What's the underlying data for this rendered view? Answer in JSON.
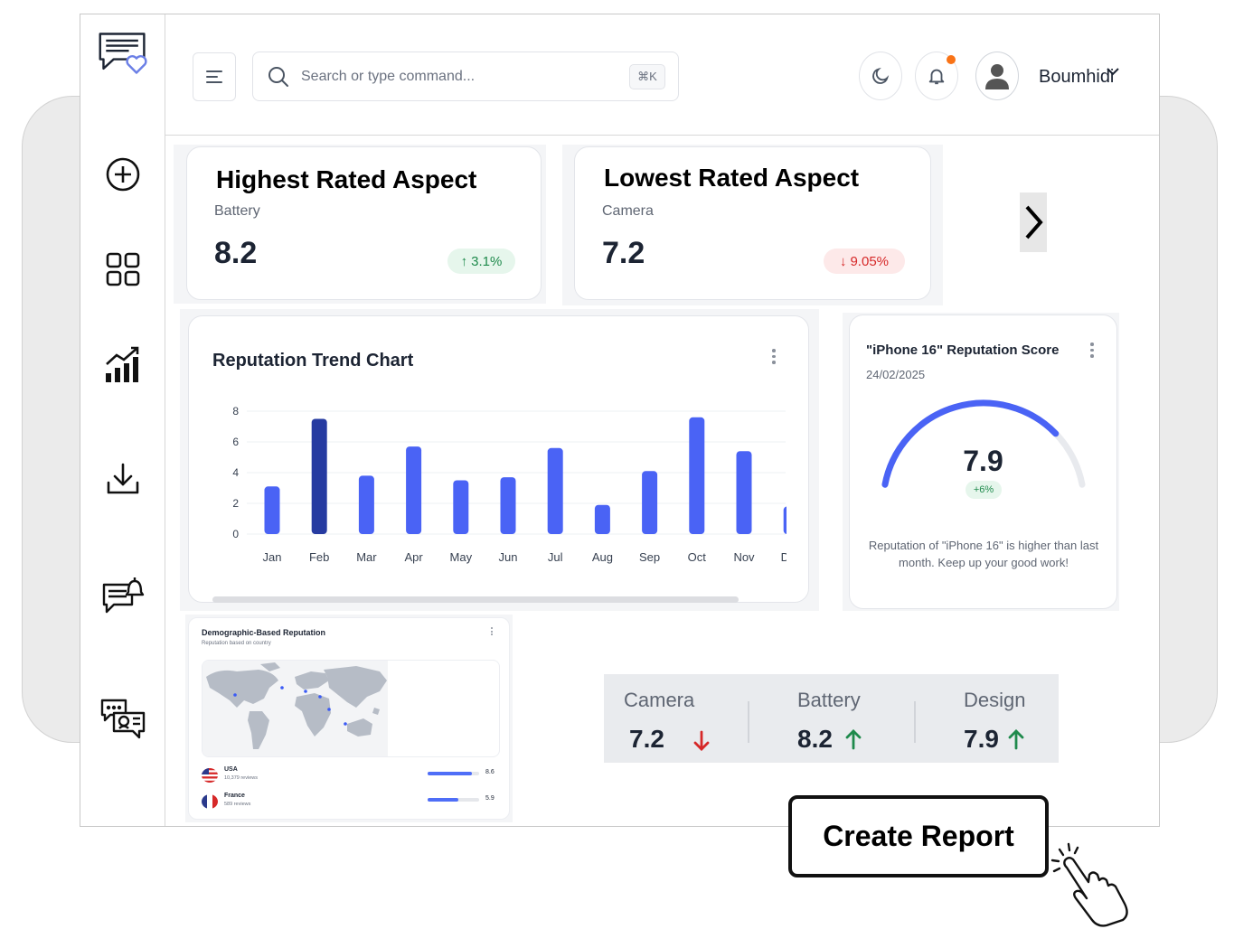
{
  "topbar": {
    "search_placeholder": "Search or type command...",
    "search_shortcut": "⌘K",
    "username": "Boumhidi"
  },
  "sidebar": {
    "items": [
      {
        "icon": "feedback-heart-icon"
      },
      {
        "icon": "plus-circle-icon"
      },
      {
        "icon": "grid-icon"
      },
      {
        "icon": "analytics-icon"
      },
      {
        "icon": "download-icon"
      },
      {
        "icon": "message-alert-icon"
      },
      {
        "icon": "support-chat-icon"
      }
    ]
  },
  "highest": {
    "title": "Highest Rated Aspect",
    "aspect": "Battery",
    "value": "8.2",
    "change": "3.1%"
  },
  "lowest": {
    "title": "Lowest Rated Aspect",
    "aspect": "Camera",
    "value": "7.2",
    "change": "9.05%"
  },
  "trend": {
    "title": "Reputation Trend Chart"
  },
  "chart_data": {
    "type": "bar",
    "title": "Reputation Trend Chart",
    "categories": [
      "Jan",
      "Feb",
      "Mar",
      "Apr",
      "May",
      "Jun",
      "Jul",
      "Aug",
      "Sep",
      "Oct",
      "Nov",
      "Dec"
    ],
    "values": [
      3.1,
      7.5,
      3.8,
      5.7,
      3.5,
      3.7,
      5.6,
      1.9,
      4.1,
      7.6,
      5.4,
      1.8
    ],
    "highlight_index": 1,
    "ylim": [
      0,
      8
    ],
    "yticks": [
      "8",
      "6",
      "4",
      "2",
      "0"
    ],
    "colors": {
      "bar": "#4a63f5",
      "highlight": "#263ba1"
    },
    "grid": true
  },
  "score": {
    "title": "\"iPhone 16\" Reputation Score",
    "date": "24/02/2025",
    "value": "7.9",
    "change": "+6%",
    "fill_fraction": 0.79,
    "message": "Reputation of \"iPhone 16\" is higher than last month. Keep up your good work!"
  },
  "demographic": {
    "title": "Demographic-Based Reputation",
    "subtitle": "Reputation based on country",
    "countries": [
      {
        "name": "USA",
        "reviews": "10,379 reviews",
        "score": "8.6",
        "fill": 0.86
      },
      {
        "name": "France",
        "reviews": "589 reviews",
        "score": "5.9",
        "fill": 0.59
      }
    ]
  },
  "summary": {
    "items": [
      {
        "label": "Camera",
        "value": "7.2",
        "trend": "down"
      },
      {
        "label": "Battery",
        "value": "8.2",
        "trend": "up"
      },
      {
        "label": "Design",
        "value": "7.9",
        "trend": "up"
      }
    ]
  },
  "cta": {
    "label": "Create Report"
  },
  "colors": {
    "accent": "#4a63f5",
    "accent_dark": "#263ba1",
    "positive": "#1f8a4c",
    "negative": "#d62828",
    "notification": "#f97316"
  }
}
